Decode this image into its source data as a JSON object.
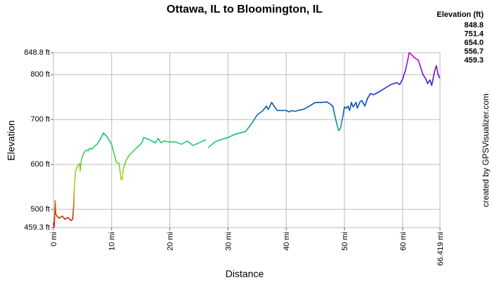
{
  "chart_data": {
    "type": "line",
    "title": "Ottawa, IL to Bloomington, IL",
    "xlabel": "Distance",
    "ylabel": "Elevation",
    "credit": "created by GPSVisualizer.com",
    "legend": {
      "title": "Elevation (ft)",
      "items": [
        {
          "value": 848.8,
          "color": "#cc00cc"
        },
        {
          "value": 751.4,
          "color": "#0033cc"
        },
        {
          "value": 654,
          "label": "654.0",
          "color": "#11cc77"
        },
        {
          "value": 556.7,
          "color": "#cccc00"
        },
        {
          "value": 459.3,
          "color": "#cc0000"
        }
      ]
    },
    "xlim": [
      0,
      66.419
    ],
    "ylim": [
      459.3,
      848.8
    ],
    "xticks": [
      {
        "value": 0,
        "label": "0 mi"
      },
      {
        "value": 10,
        "label": "10 mi"
      },
      {
        "value": 20,
        "label": "20 mi"
      },
      {
        "value": 30,
        "label": "30 mi"
      },
      {
        "value": 40,
        "label": "40 mi"
      },
      {
        "value": 50,
        "label": "50 mi"
      },
      {
        "value": 60,
        "label": "60 mi"
      },
      {
        "value": 66.419,
        "label": "66.419 mi"
      }
    ],
    "yticks": [
      {
        "value": 459.3,
        "label": "459.3 ft"
      },
      {
        "value": 500,
        "label": "500 ft"
      },
      {
        "value": 600,
        "label": "600 ft"
      },
      {
        "value": 700,
        "label": "700 ft"
      },
      {
        "value": 800,
        "label": "800 ft"
      },
      {
        "value": 848.8,
        "label": "848.8 ft"
      }
    ],
    "grid": true,
    "x": [
      0,
      0.1,
      0.2,
      0.3,
      0.4,
      0.6,
      1,
      1.5,
      2,
      2.5,
      3,
      3.3,
      3.5,
      3.6,
      3.8,
      4.2,
      4.5,
      4.6,
      4.8,
      5.2,
      5.6,
      6,
      6.2,
      6.6,
      7,
      7.5,
      8,
      8.6,
      9.2,
      10,
      10.5,
      10.8,
      11.3,
      11.6,
      11.8,
      12,
      12.5,
      13,
      14,
      15.2,
      15.5,
      16.5,
      17.5,
      18,
      18.5,
      19,
      20,
      21,
      22,
      23,
      24,
      25,
      26.2,
      26.4,
      26.6,
      27,
      28,
      29,
      30,
      31,
      32,
      33,
      34,
      35,
      36,
      36.3,
      36.6,
      36.9,
      37.5,
      38,
      38.5,
      39,
      40,
      40.5,
      41,
      41.5,
      42,
      43,
      44,
      45,
      46,
      47,
      47.5,
      48,
      48.5,
      49,
      49.3,
      49.7,
      50,
      50.3,
      50.6,
      50.9,
      51.2,
      51.5,
      52,
      52.2,
      52.7,
      53,
      53.5,
      54,
      54.5,
      55,
      56,
      57,
      58,
      59,
      59.5,
      60,
      60.5,
      61,
      61.1,
      61.5,
      62,
      62.7,
      63,
      63.5,
      64,
      64.3,
      64.7,
      65,
      65.5,
      65.8,
      66.1,
      66.419
    ],
    "values": [
      470,
      460,
      480,
      520,
      490,
      485,
      480,
      485,
      478,
      482,
      475,
      478,
      512,
      550,
      585,
      598,
      602,
      585,
      610,
      625,
      632,
      630,
      636,
      634,
      640,
      645,
      655,
      670,
      662,
      645,
      620,
      605,
      602,
      568,
      565,
      590,
      610,
      620,
      633,
      648,
      660,
      655,
      648,
      658,
      648,
      652,
      650,
      650,
      645,
      652,
      642,
      648,
      655,
      null,
      637,
      642,
      652,
      656,
      660,
      666,
      670,
      673,
      690,
      710,
      720,
      725,
      730,
      722,
      738,
      728,
      720,
      720,
      720,
      717,
      720,
      718,
      720,
      723,
      730,
      738,
      738,
      739,
      735,
      730,
      700,
      675,
      680,
      705,
      728,
      725,
      730,
      720,
      738,
      728,
      738,
      725,
      740,
      742,
      730,
      748,
      758,
      755,
      762,
      770,
      778,
      782,
      778,
      790,
      810,
      840,
      848.8,
      845,
      838,
      832,
      820,
      800,
      790,
      780,
      788,
      776,
      808,
      820,
      800,
      792
    ]
  }
}
